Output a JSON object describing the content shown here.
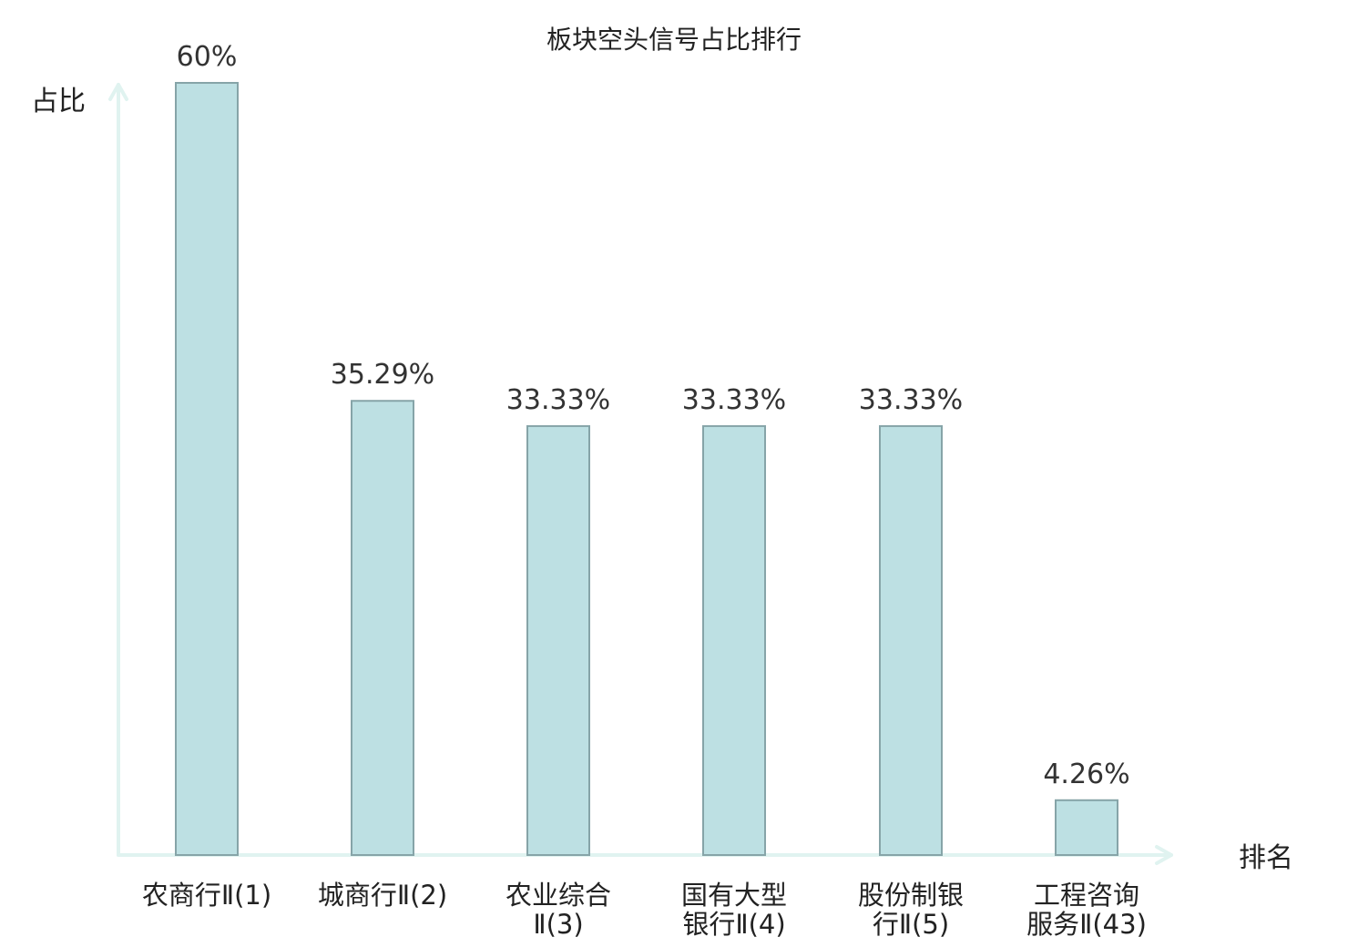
{
  "chart_data": {
    "type": "bar",
    "title": "板块空头信号占比排行",
    "ylabel": "占比",
    "xlabel": "排名",
    "ylim": [
      0,
      60
    ],
    "categories": [
      [
        "农商行Ⅱ(1)"
      ],
      [
        "城商行Ⅱ(2)"
      ],
      [
        "农业综合",
        "Ⅱ(3)"
      ],
      [
        "国有大型",
        "银行Ⅱ(4)"
      ],
      [
        "股份制银",
        "行Ⅱ(5)"
      ],
      [
        "工程咨询",
        "服务Ⅱ(43)"
      ]
    ],
    "values": [
      60,
      35.29,
      33.33,
      33.33,
      33.33,
      4.26
    ],
    "value_labels": [
      "60%",
      "35.29%",
      "33.33%",
      "33.33%",
      "33.33%",
      "4.26%"
    ],
    "highlight_index": 5,
    "colors": {
      "bar_fill": "#bde0e3",
      "bar_stroke": "#86a4a8",
      "axis": "#e0f3f0",
      "highlight_text": "#e02020",
      "text": "#222222"
    },
    "grid": false
  }
}
